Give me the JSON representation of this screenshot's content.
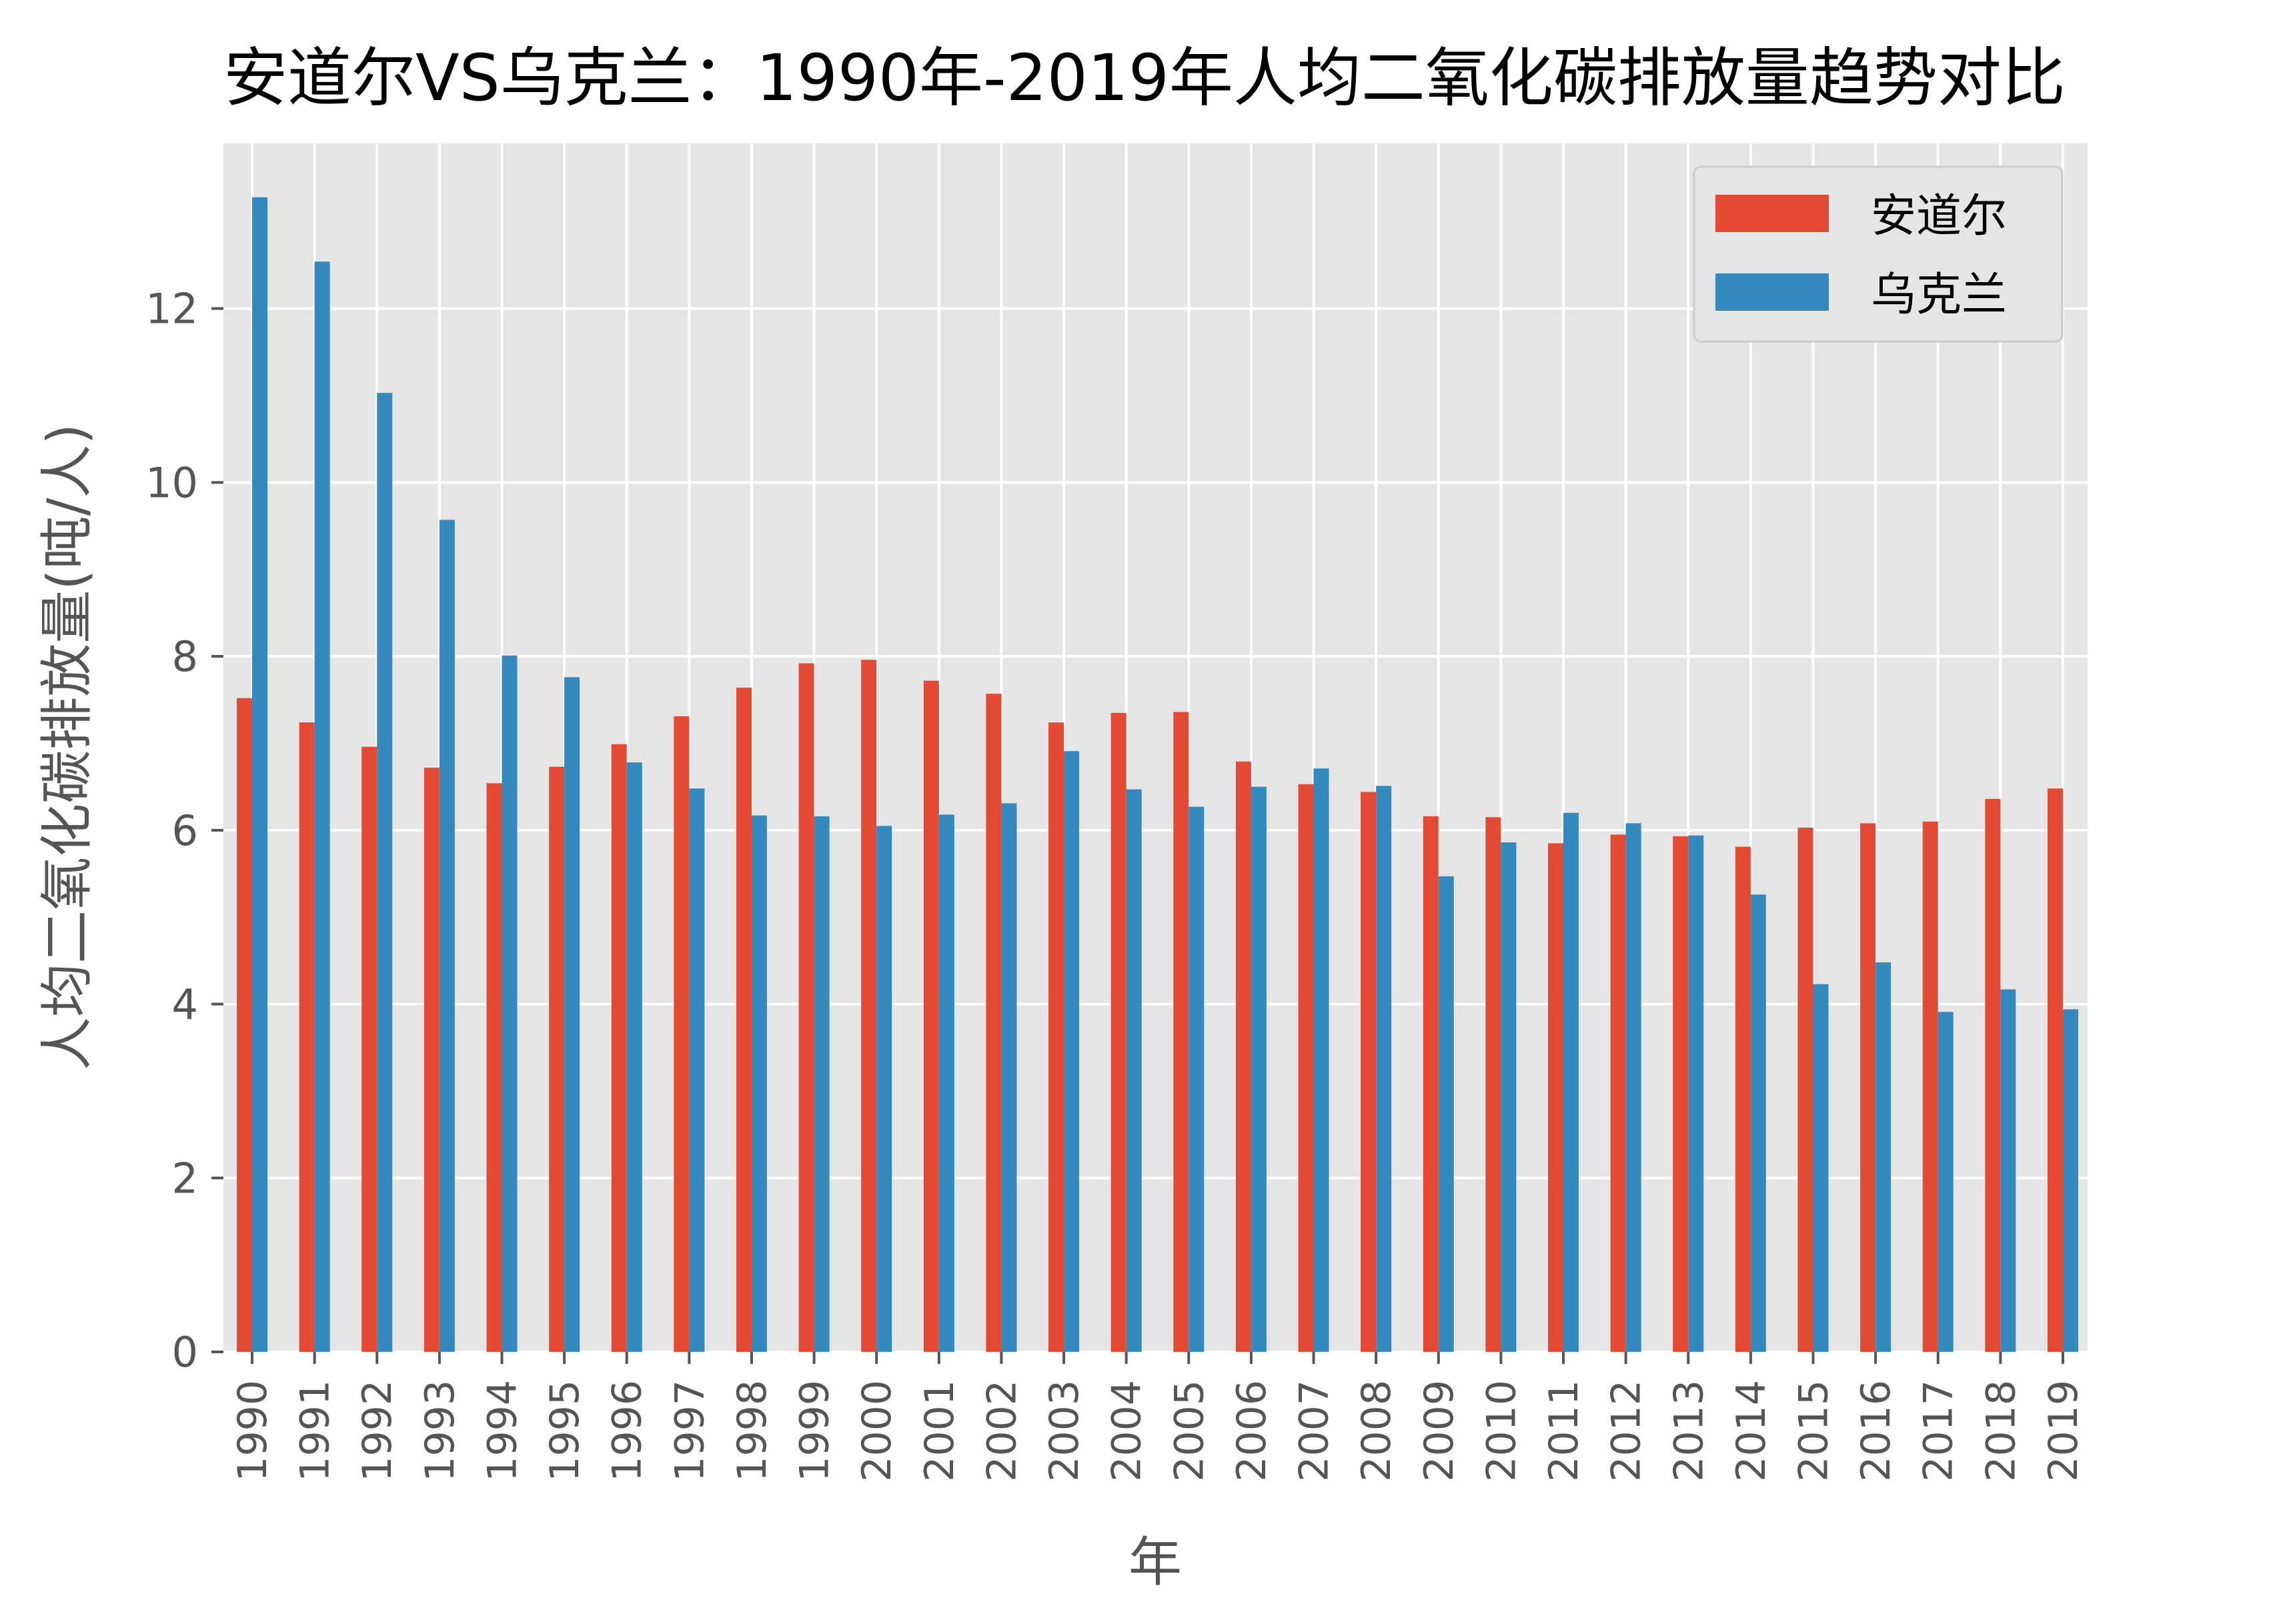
{
  "chart_data": {
    "type": "bar",
    "title": "安道尔VS乌克兰：1990年-2019年人均二氧化碳排放量趋势对比",
    "xlabel": "年",
    "ylabel": "人均二氧化碳排放量(吨/人)",
    "ylim": [
      0,
      13.9
    ],
    "yticks": [
      0,
      2,
      4,
      6,
      8,
      10,
      12
    ],
    "grid": true,
    "legend_position": "top-right",
    "categories": [
      "1990",
      "1991",
      "1992",
      "1993",
      "1994",
      "1995",
      "1996",
      "1997",
      "1998",
      "1999",
      "2000",
      "2001",
      "2002",
      "2003",
      "2004",
      "2005",
      "2006",
      "2007",
      "2008",
      "2009",
      "2010",
      "2011",
      "2012",
      "2013",
      "2014",
      "2015",
      "2016",
      "2017",
      "2018",
      "2019"
    ],
    "series": [
      {
        "name": "安道尔",
        "color": "#E24A33",
        "values": [
          7.52,
          7.24,
          6.96,
          6.72,
          6.54,
          6.73,
          6.99,
          7.31,
          7.64,
          7.92,
          7.96,
          7.72,
          7.57,
          7.24,
          7.35,
          7.36,
          6.79,
          6.53,
          6.44,
          6.16,
          6.15,
          5.85,
          5.95,
          5.93,
          5.81,
          6.03,
          6.08,
          6.1,
          6.36,
          6.48
        ]
      },
      {
        "name": "乌克兰",
        "color": "#348ABD",
        "values": [
          13.28,
          12.54,
          11.03,
          9.57,
          8.01,
          7.76,
          6.78,
          6.48,
          6.17,
          6.16,
          6.05,
          6.18,
          6.31,
          6.91,
          6.47,
          6.27,
          6.5,
          6.71,
          6.51,
          5.47,
          5.86,
          6.2,
          6.08,
          5.94,
          5.26,
          4.23,
          4.48,
          3.91,
          4.17,
          3.94
        ]
      }
    ]
  }
}
